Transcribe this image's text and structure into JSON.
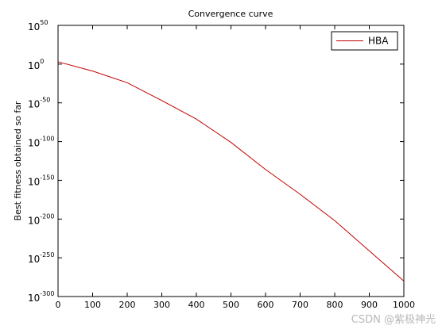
{
  "chart_data": {
    "type": "line",
    "title": "Convergence curve",
    "ylabel": "Best fitness obtained so far",
    "yscale": "log",
    "legend": "upper right",
    "grid": false,
    "x": [
      0,
      100,
      200,
      300,
      400,
      500,
      600,
      700,
      800,
      900,
      1000
    ],
    "series": [
      {
        "name": "HBA",
        "color": "#c00000",
        "values": [
          1000.0,
          1e-09,
          1e-24,
          1e-47,
          1e-71,
          1e-101,
          1e-136,
          1e-168,
          1e-202,
          1e-241,
          1e-280
        ]
      }
    ],
    "xlim": [
      0,
      1000
    ],
    "xticks": [
      0,
      100,
      200,
      300,
      400,
      500,
      600,
      700,
      800,
      900,
      1000
    ],
    "ylim": [
      1e-300,
      1e+50
    ],
    "yticks": [
      {
        "value": 1e-300,
        "label": {
          "base": "10",
          "exponent": "-300"
        }
      },
      {
        "value": 1e-250,
        "label": {
          "base": "10",
          "exponent": "-250"
        }
      },
      {
        "value": 1e-200,
        "label": {
          "base": "10",
          "exponent": "-200"
        }
      },
      {
        "value": 1e-150,
        "label": {
          "base": "10",
          "exponent": "-150"
        }
      },
      {
        "value": 1e-100,
        "label": {
          "base": "10",
          "exponent": "-100"
        }
      },
      {
        "value": 1e-50,
        "label": {
          "base": "10",
          "exponent": "-50"
        }
      },
      {
        "value": 1,
        "label": {
          "base": "10",
          "exponent": "0"
        }
      },
      {
        "value": 1e+50,
        "label": {
          "base": "10",
          "exponent": "50"
        }
      }
    ],
    "watermark": "CSDN @紫极神光"
  }
}
